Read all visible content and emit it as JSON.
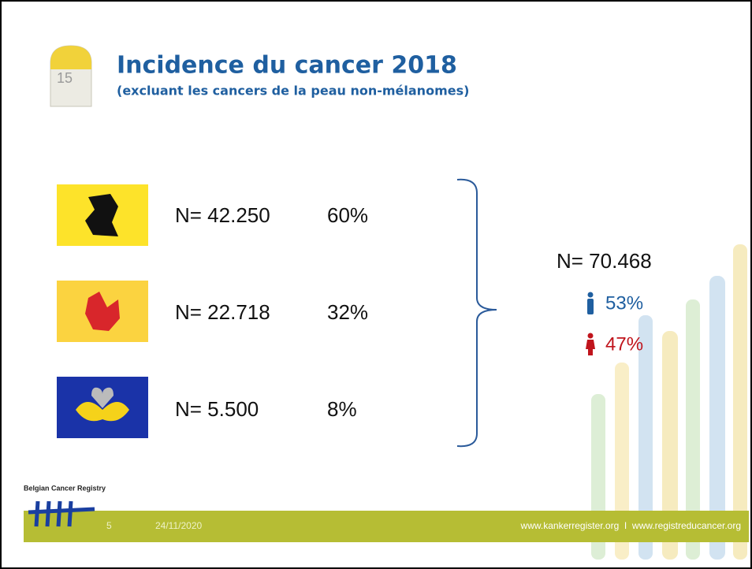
{
  "header": {
    "milestone": "15",
    "title": "Incidence du cancer 2018",
    "subtitle": "(excluant les cancers de la peau non-mélanomes)"
  },
  "regions": [
    {
      "count": "N= 42.250",
      "share": "60%"
    },
    {
      "count": "N= 22.718",
      "share": "32%"
    },
    {
      "count": "N= 5.500",
      "share": "8%"
    }
  ],
  "total": {
    "count": "N= 70.468",
    "male": "53%",
    "female": "47%"
  },
  "footer": {
    "logo": "Belgian Cancer Registry",
    "page": "5",
    "date": "24/11/2020",
    "links": "www.kankerregister.org  I  www.registreducancer.org"
  }
}
